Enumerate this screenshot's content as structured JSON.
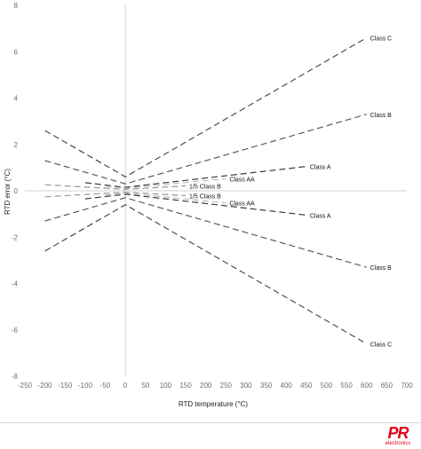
{
  "chart_data": {
    "type": "line",
    "title": "",
    "xlabel": "RTD temperature (°C)",
    "ylabel": "RTD error (°C)",
    "xlim": [
      -250,
      700
    ],
    "ylim": [
      -8,
      8
    ],
    "xticks": [
      -250,
      -200,
      -150,
      -100,
      -50,
      0,
      50,
      100,
      150,
      200,
      250,
      300,
      350,
      400,
      450,
      500,
      550,
      600,
      650,
      700
    ],
    "yticks": [
      -8,
      -6,
      -4,
      -2,
      0,
      2,
      4,
      6,
      8
    ],
    "grid": false,
    "legend": "none",
    "series": [
      {
        "name": "Class C",
        "color": "#4a4a4a",
        "x": [
          -200,
          0,
          600
        ],
        "y": [
          2.6,
          0.6,
          6.6
        ]
      },
      {
        "name": "Class C",
        "color": "#4a4a4a",
        "x": [
          -200,
          0,
          600
        ],
        "y": [
          -2.6,
          -0.6,
          -6.6
        ]
      },
      {
        "name": "Class B",
        "color": "#5a5a5a",
        "x": [
          -200,
          0,
          600
        ],
        "y": [
          1.3,
          0.3,
          3.3
        ]
      },
      {
        "name": "Class B",
        "color": "#5a5a5a",
        "x": [
          -200,
          0,
          600
        ],
        "y": [
          -1.3,
          -0.3,
          -3.3
        ]
      },
      {
        "name": "Class A",
        "color": "#3a3a3a",
        "x": [
          -100,
          0,
          450
        ],
        "y": [
          0.35,
          0.15,
          1.05
        ]
      },
      {
        "name": "Class A",
        "color": "#3a3a3a",
        "x": [
          -100,
          0,
          450
        ],
        "y": [
          -0.35,
          -0.15,
          -1.05
        ]
      },
      {
        "name": "Class AA",
        "color": "#bdbdbd",
        "x": [
          -50,
          0,
          250
        ],
        "y": [
          0.2,
          0.1,
          0.525
        ]
      },
      {
        "name": "Class AA",
        "color": "#bdbdbd",
        "x": [
          -50,
          0,
          250
        ],
        "y": [
          -0.2,
          -0.1,
          -0.525
        ]
      },
      {
        "name": "1/5 Class B",
        "color": "#9a9a9a",
        "x": [
          -200,
          0,
          150
        ],
        "y": [
          0.26,
          0.06,
          0.21
        ]
      },
      {
        "name": "1/5 Class B",
        "color": "#9a9a9a",
        "x": [
          -200,
          0,
          150
        ],
        "y": [
          -0.26,
          -0.06,
          -0.21
        ]
      }
    ]
  },
  "branding": {
    "logo_text": "PR",
    "logo_subtext": "electronics"
  }
}
